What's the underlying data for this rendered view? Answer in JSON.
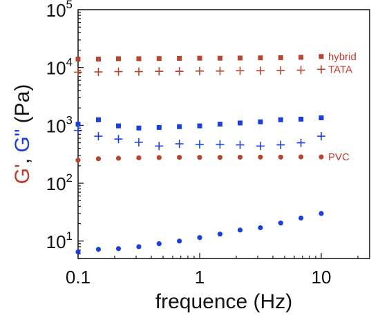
{
  "chart_data": {
    "type": "scatter",
    "title": "",
    "xlabel": "frequence (Hz)",
    "ylabel_parts": [
      {
        "text": "G'",
        "color": "#c0392b"
      },
      {
        "text": ", ",
        "color": "#111111"
      },
      {
        "text": "G\"",
        "color": "#1a3fe0"
      },
      {
        "text": " (Pa)",
        "color": "#111111"
      }
    ],
    "x_scale": "log",
    "y_scale": "log",
    "xlim": [
      0.1,
      25
    ],
    "ylim": [
      5,
      100000
    ],
    "x_ticks": [
      {
        "value": 0.1,
        "label": "0.1"
      },
      {
        "value": 1,
        "label": "1"
      },
      {
        "value": 10,
        "label": "10"
      }
    ],
    "y_ticks": [
      {
        "value": 10,
        "base": "10",
        "exp": "1"
      },
      {
        "value": 100,
        "base": "10",
        "exp": "2"
      },
      {
        "value": 1000,
        "base": "10",
        "exp": "3"
      },
      {
        "value": 10000,
        "base": "10",
        "exp": "4"
      },
      {
        "value": 100000,
        "base": "10",
        "exp": "5"
      }
    ],
    "series": [
      {
        "name": "hybrid",
        "marker": "square",
        "color": "#b8452f",
        "x": [
          0.1,
          0.147,
          0.215,
          0.316,
          0.464,
          0.681,
          1.0,
          1.47,
          2.15,
          3.16,
          4.64,
          6.81,
          10.0
        ],
        "y": [
          14000,
          14000,
          14200,
          14200,
          14300,
          14400,
          14500,
          14500,
          14600,
          14700,
          14800,
          15000,
          15500
        ]
      },
      {
        "name": "TATA",
        "marker": "plus",
        "color": "#b8452f",
        "x": [
          0.1,
          0.147,
          0.215,
          0.316,
          0.464,
          0.681,
          1.0,
          1.47,
          2.15,
          3.16,
          4.64,
          6.81,
          10.0
        ],
        "y": [
          8300,
          8400,
          8500,
          8500,
          8600,
          8600,
          8700,
          8700,
          8800,
          8800,
          8900,
          9000,
          9300
        ]
      },
      {
        "name": "",
        "marker": "square",
        "color": "#1a3fe0",
        "x": [
          0.1,
          0.147,
          0.215,
          0.316,
          0.464,
          0.681,
          1.0,
          1.47,
          2.15,
          3.16,
          4.64,
          6.81,
          10.0
        ],
        "y": [
          1050,
          1250,
          980,
          900,
          920,
          950,
          980,
          1050,
          1100,
          1150,
          1250,
          1280,
          1350
        ]
      },
      {
        "name": "",
        "marker": "plus",
        "color": "#1a3fe0",
        "x": [
          0.1,
          0.147,
          0.215,
          0.316,
          0.464,
          0.681,
          1.0,
          1.47,
          2.15,
          3.16,
          4.64,
          6.81,
          10.0
        ],
        "y": [
          820,
          650,
          580,
          510,
          440,
          480,
          470,
          470,
          460,
          440,
          460,
          500,
          650
        ]
      },
      {
        "name": "PVC",
        "marker": "circle",
        "color": "#b8452f",
        "x": [
          0.1,
          0.147,
          0.215,
          0.316,
          0.464,
          0.681,
          1.0,
          1.47,
          2.15,
          3.16,
          4.64,
          6.81,
          10.0
        ],
        "y": [
          250,
          265,
          270,
          275,
          278,
          280,
          280,
          280,
          282,
          283,
          283,
          285,
          285
        ]
      },
      {
        "name": "",
        "marker": "circle",
        "color": "#1a3fe0",
        "x": [
          0.1,
          0.147,
          0.215,
          0.316,
          0.464,
          0.681,
          1.0,
          1.47,
          2.15,
          3.16,
          4.64,
          6.81,
          10.0
        ],
        "y": [
          6.5,
          7.2,
          7.4,
          8.0,
          9.0,
          10.0,
          11.5,
          13.2,
          15.5,
          17.0,
          20.5,
          25.0,
          30.0
        ]
      }
    ],
    "series_label_color": "#c0392b",
    "grid": false,
    "legend": "none"
  }
}
